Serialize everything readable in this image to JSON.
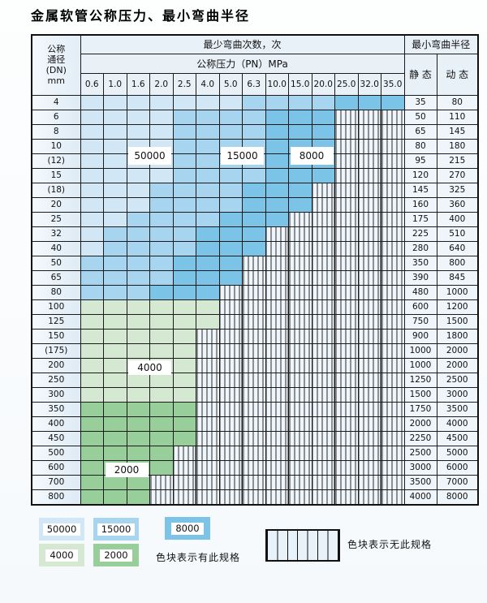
{
  "title": "金属软管公称压力、最小弯曲半径",
  "colors": {
    "band_50000": "#d2e7f6",
    "band_15000": "#a7d4ef",
    "band_8000": "#7cc3e8",
    "band_4000": "#d5e8d2",
    "band_2000": "#97ce99",
    "striped_bg": "#eef5fb",
    "header_bg": "#e9f1f8",
    "grid_line": "#1b1b1b"
  },
  "table": {
    "dn_header_lines": [
      "公称",
      "通径",
      "(DN)",
      "mm"
    ],
    "bend_times_header": "最少弯曲次数，次",
    "pressure_header": "公称压力（PN）MPa",
    "radius_header": "最小弯曲半径",
    "static_header": "静 态",
    "dynamic_header": "动 态",
    "pressures": [
      "0.6",
      "1.0",
      "1.6",
      "2.0",
      "2.5",
      "4.0",
      "5.0",
      "6.3",
      "10.0",
      "15.0",
      "20.0",
      "25.0",
      "32.0",
      "35.0"
    ],
    "rows": [
      {
        "dn": "4",
        "cells": [
          "b1",
          "b1",
          "b1",
          "b1",
          "b1",
          "b1",
          "b1",
          "b2",
          "b2",
          "b2",
          "b2",
          "b3",
          "b3",
          "b3"
        ],
        "static": "35",
        "dynamic": "80"
      },
      {
        "dn": "6",
        "cells": [
          "b1",
          "b1",
          "b1",
          "b1",
          "b2",
          "b2",
          "b2",
          "b2",
          "b3",
          "b3",
          "b3",
          "x",
          "x",
          "x"
        ],
        "static": "50",
        "dynamic": "110"
      },
      {
        "dn": "8",
        "cells": [
          "b1",
          "b1",
          "b1",
          "b1",
          "b2",
          "b2",
          "b2",
          "b2",
          "b3",
          "b3",
          "b3",
          "x",
          "x",
          "x"
        ],
        "static": "65",
        "dynamic": "145"
      },
      {
        "dn": "10",
        "cells": [
          "b1",
          "b1",
          "b1",
          "b1",
          "b2",
          "b2",
          "b2",
          "b2",
          "b3",
          "b3",
          "b3",
          "x",
          "x",
          "x"
        ],
        "static": "80",
        "dynamic": "180"
      },
      {
        "dn": "(12)",
        "cells": [
          "b1",
          "b1",
          "b1",
          "b1",
          "b2",
          "b2",
          "b2",
          "b2",
          "b3",
          "b3",
          "b3",
          "x",
          "x",
          "x"
        ],
        "static": "95",
        "dynamic": "215"
      },
      {
        "dn": "15",
        "cells": [
          "b1",
          "b1",
          "b1",
          "b1",
          "b2",
          "b2",
          "b2",
          "b2",
          "b3",
          "b3",
          "b3",
          "x",
          "x",
          "x"
        ],
        "static": "120",
        "dynamic": "270"
      },
      {
        "dn": "(18)",
        "cells": [
          "b1",
          "b1",
          "b1",
          "b2",
          "b2",
          "b2",
          "b2",
          "b3",
          "b3",
          "b3",
          "x",
          "x",
          "x",
          "x"
        ],
        "static": "145",
        "dynamic": "325"
      },
      {
        "dn": "20",
        "cells": [
          "b1",
          "b1",
          "b1",
          "b2",
          "b2",
          "b2",
          "b2",
          "b3",
          "b3",
          "b3",
          "x",
          "x",
          "x",
          "x"
        ],
        "static": "160",
        "dynamic": "360"
      },
      {
        "dn": "25",
        "cells": [
          "b1",
          "b1",
          "b2",
          "b2",
          "b2",
          "b2",
          "b3",
          "b3",
          "b3",
          "x",
          "x",
          "x",
          "x",
          "x"
        ],
        "static": "175",
        "dynamic": "400"
      },
      {
        "dn": "32",
        "cells": [
          "b1",
          "b2",
          "b2",
          "b2",
          "b2",
          "b3",
          "b3",
          "b3",
          "x",
          "x",
          "x",
          "x",
          "x",
          "x"
        ],
        "static": "225",
        "dynamic": "510"
      },
      {
        "dn": "40",
        "cells": [
          "b1",
          "b2",
          "b2",
          "b2",
          "b2",
          "b3",
          "b3",
          "b3",
          "x",
          "x",
          "x",
          "x",
          "x",
          "x"
        ],
        "static": "280",
        "dynamic": "640"
      },
      {
        "dn": "50",
        "cells": [
          "b2",
          "b2",
          "b2",
          "b2",
          "b3",
          "b3",
          "b3",
          "x",
          "x",
          "x",
          "x",
          "x",
          "x",
          "x"
        ],
        "static": "350",
        "dynamic": "800"
      },
      {
        "dn": "65",
        "cells": [
          "b2",
          "b2",
          "b2",
          "b2",
          "b3",
          "b3",
          "b3",
          "x",
          "x",
          "x",
          "x",
          "x",
          "x",
          "x"
        ],
        "static": "390",
        "dynamic": "845"
      },
      {
        "dn": "80",
        "cells": [
          "b2",
          "b2",
          "b2",
          "b3",
          "b3",
          "b3",
          "x",
          "x",
          "x",
          "x",
          "x",
          "x",
          "x",
          "x"
        ],
        "static": "480",
        "dynamic": "1000"
      },
      {
        "dn": "100",
        "cells": [
          "g1",
          "g1",
          "g1",
          "g1",
          "g1",
          "g1",
          "x",
          "x",
          "x",
          "x",
          "x",
          "x",
          "x",
          "x"
        ],
        "static": "600",
        "dynamic": "1200"
      },
      {
        "dn": "125",
        "cells": [
          "g1",
          "g1",
          "g1",
          "g1",
          "g1",
          "g1",
          "x",
          "x",
          "x",
          "x",
          "x",
          "x",
          "x",
          "x"
        ],
        "static": "750",
        "dynamic": "1500"
      },
      {
        "dn": "150",
        "cells": [
          "g1",
          "g1",
          "g1",
          "g1",
          "g1",
          "x",
          "x",
          "x",
          "x",
          "x",
          "x",
          "x",
          "x",
          "x"
        ],
        "static": "900",
        "dynamic": "1800"
      },
      {
        "dn": "(175)",
        "cells": [
          "g1",
          "g1",
          "g1",
          "g1",
          "g1",
          "x",
          "x",
          "x",
          "x",
          "x",
          "x",
          "x",
          "x",
          "x"
        ],
        "static": "1000",
        "dynamic": "2000"
      },
      {
        "dn": "200",
        "cells": [
          "g1",
          "g1",
          "g1",
          "g1",
          "g1",
          "x",
          "x",
          "x",
          "x",
          "x",
          "x",
          "x",
          "x",
          "x"
        ],
        "static": "1000",
        "dynamic": "2000"
      },
      {
        "dn": "250",
        "cells": [
          "g1",
          "g1",
          "g1",
          "g1",
          "g1",
          "x",
          "x",
          "x",
          "x",
          "x",
          "x",
          "x",
          "x",
          "x"
        ],
        "static": "1250",
        "dynamic": "2500"
      },
      {
        "dn": "300",
        "cells": [
          "g1",
          "g1",
          "g1",
          "g1",
          "g1",
          "x",
          "x",
          "x",
          "x",
          "x",
          "x",
          "x",
          "x",
          "x"
        ],
        "static": "1500",
        "dynamic": "3000"
      },
      {
        "dn": "350",
        "cells": [
          "g2",
          "g2",
          "g2",
          "g2",
          "g2",
          "x",
          "x",
          "x",
          "x",
          "x",
          "x",
          "x",
          "x",
          "x"
        ],
        "static": "1750",
        "dynamic": "3500"
      },
      {
        "dn": "400",
        "cells": [
          "g2",
          "g2",
          "g2",
          "g2",
          "g2",
          "x",
          "x",
          "x",
          "x",
          "x",
          "x",
          "x",
          "x",
          "x"
        ],
        "static": "2000",
        "dynamic": "4000"
      },
      {
        "dn": "450",
        "cells": [
          "g2",
          "g2",
          "g2",
          "g2",
          "g2",
          "x",
          "x",
          "x",
          "x",
          "x",
          "x",
          "x",
          "x",
          "x"
        ],
        "static": "2250",
        "dynamic": "4500"
      },
      {
        "dn": "500",
        "cells": [
          "g2",
          "g2",
          "g2",
          "g2",
          "x",
          "x",
          "x",
          "x",
          "x",
          "x",
          "x",
          "x",
          "x",
          "x"
        ],
        "static": "2500",
        "dynamic": "5000"
      },
      {
        "dn": "600",
        "cells": [
          "g2",
          "g2",
          "g2",
          "g2",
          "x",
          "x",
          "x",
          "x",
          "x",
          "x",
          "x",
          "x",
          "x",
          "x"
        ],
        "static": "3000",
        "dynamic": "6000"
      },
      {
        "dn": "700",
        "cells": [
          "g2",
          "g2",
          "g2",
          "x",
          "x",
          "x",
          "x",
          "x",
          "x",
          "x",
          "x",
          "x",
          "x",
          "x"
        ],
        "static": "3500",
        "dynamic": "7000"
      },
      {
        "dn": "800",
        "cells": [
          "g2",
          "g2",
          "g2",
          "x",
          "x",
          "x",
          "x",
          "x",
          "x",
          "x",
          "x",
          "x",
          "x",
          "x"
        ],
        "static": "4000",
        "dynamic": "8000"
      }
    ],
    "overlays": [
      {
        "label": "50000",
        "col_start": 2,
        "col_span": 2,
        "row_index": 3,
        "row_span": 2
      },
      {
        "label": "15000",
        "col_start": 6,
        "col_span": 2,
        "row_index": 3,
        "row_span": 2
      },
      {
        "label": "8000",
        "col_start": 9,
        "col_span": 2,
        "row_index": 3,
        "row_span": 2
      },
      {
        "label": "4000",
        "col_start": 2,
        "col_span": 2,
        "row_index": 18,
        "row_span": 1
      },
      {
        "label": "2000",
        "col_start": 1,
        "col_span": 2,
        "row_index": 25,
        "row_span": 1
      }
    ]
  },
  "legend": {
    "blocks": [
      {
        "label": "50000",
        "band": "b1"
      },
      {
        "label": "15000",
        "band": "b2"
      },
      {
        "label": "8000",
        "band": "b3"
      },
      {
        "label": "4000",
        "band": "g1"
      },
      {
        "label": "2000",
        "band": "g2"
      }
    ],
    "has_spec_note": "色块表示有此规格",
    "no_spec_note": "色块表示无此规格"
  }
}
